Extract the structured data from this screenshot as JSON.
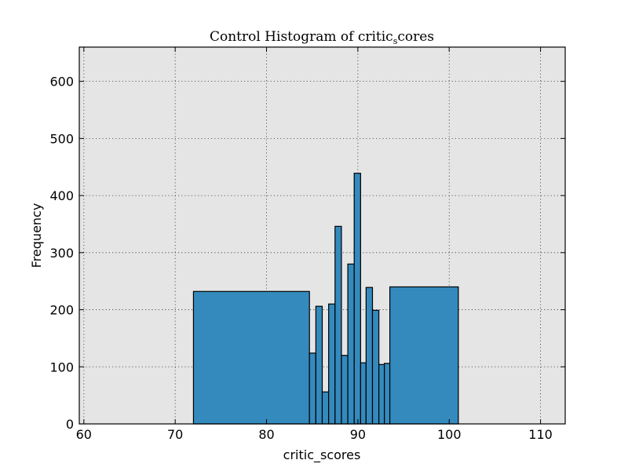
{
  "chart_data": {
    "type": "bar",
    "title": "Control Histogram of critic_scores",
    "title_main": "Control Histogram of critic",
    "title_sub": "s",
    "title_tail": "cores",
    "xlabel": "critic_scores",
    "ylabel": "Frequency",
    "xlim": [
      59.5,
      112.7
    ],
    "ylim": [
      0,
      660
    ],
    "xticks": [
      60,
      70,
      80,
      90,
      100,
      110
    ],
    "yticks": [
      0,
      100,
      200,
      300,
      400,
      500,
      600
    ],
    "grid": true,
    "bar_color": "#348abd",
    "background_color": "#e5e5e5",
    "bins": [
      {
        "x0": 72.0,
        "x1": 84.7,
        "value": 232
      },
      {
        "x0": 84.7,
        "x1": 85.4,
        "value": 124
      },
      {
        "x0": 85.4,
        "x1": 86.1,
        "value": 206
      },
      {
        "x0": 86.1,
        "x1": 86.8,
        "value": 56
      },
      {
        "x0": 86.8,
        "x1": 87.5,
        "value": 210
      },
      {
        "x0": 87.5,
        "x1": 88.2,
        "value": 346
      },
      {
        "x0": 88.2,
        "x1": 88.9,
        "value": 120
      },
      {
        "x0": 88.9,
        "x1": 89.6,
        "value": 280
      },
      {
        "x0": 89.6,
        "x1": 90.3,
        "value": 439
      },
      {
        "x0": 90.3,
        "x1": 90.9,
        "value": 107
      },
      {
        "x0": 90.9,
        "x1": 91.6,
        "value": 239
      },
      {
        "x0": 91.6,
        "x1": 92.3,
        "value": 199
      },
      {
        "x0": 92.3,
        "x1": 92.9,
        "value": 104
      },
      {
        "x0": 92.9,
        "x1": 93.5,
        "value": 106
      },
      {
        "x0": 93.5,
        "x1": 101.0,
        "value": 240
      }
    ]
  }
}
